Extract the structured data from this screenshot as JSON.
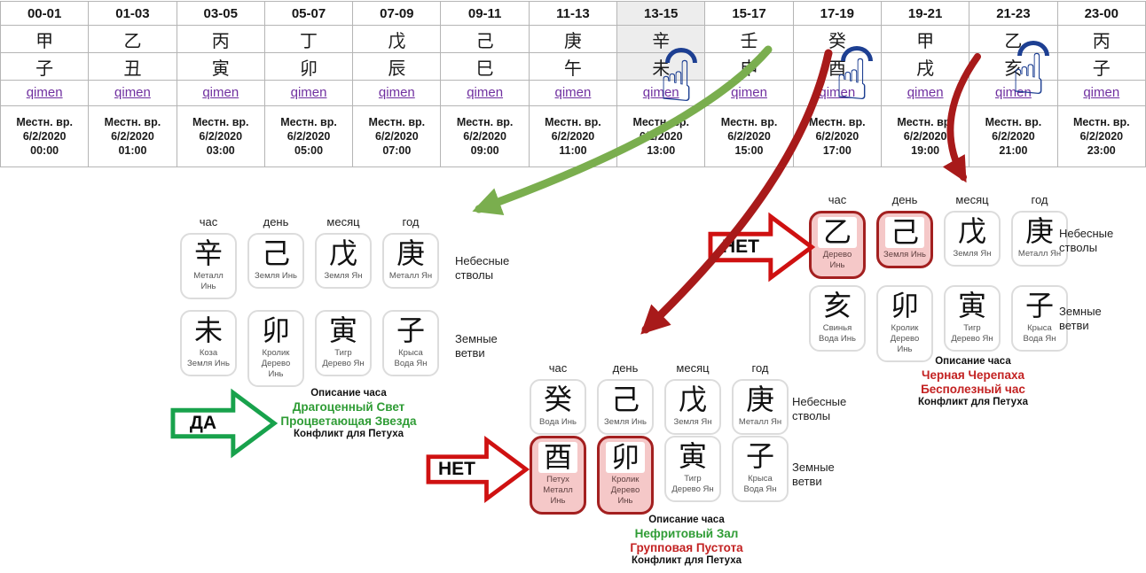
{
  "icons": {
    "tap_hand_glyph": "☝"
  },
  "colors": {
    "qimen_link": "#7030a0",
    "green_swoosh_arrow": "#7aae4e",
    "green_block_arrow": "#18a24c",
    "red_block_arrow": "#cf1111",
    "dark_red_swoosh_arrow": "#a81a1a",
    "highlight_card_bg": "#f5c8c8",
    "highlight_card_border": "#a32020",
    "green_text": "#2f9c35",
    "red_text": "#c32222",
    "hand_icon_blue": "#1d3f92",
    "selected_column_bg": "#ededed"
  },
  "hour_table": {
    "link_label": "qimen",
    "local_time_label": "Местн. вр.",
    "date": "6/2/2020",
    "columns": [
      {
        "range": "00-01",
        "stem": "甲",
        "branch": "子",
        "time": "00:00",
        "highlight": false,
        "hand": false
      },
      {
        "range": "01-03",
        "stem": "乙",
        "branch": "丑",
        "time": "01:00",
        "highlight": false,
        "hand": false
      },
      {
        "range": "03-05",
        "stem": "丙",
        "branch": "寅",
        "time": "03:00",
        "highlight": false,
        "hand": false
      },
      {
        "range": "05-07",
        "stem": "丁",
        "branch": "卯",
        "time": "05:00",
        "highlight": false,
        "hand": false
      },
      {
        "range": "07-09",
        "stem": "戊",
        "branch": "辰",
        "time": "07:00",
        "highlight": false,
        "hand": false
      },
      {
        "range": "09-11",
        "stem": "己",
        "branch": "巳",
        "time": "09:00",
        "highlight": false,
        "hand": false
      },
      {
        "range": "11-13",
        "stem": "庚",
        "branch": "午",
        "time": "11:00",
        "highlight": false,
        "hand": false
      },
      {
        "range": "13-15",
        "stem": "辛",
        "branch": "未",
        "time": "13:00",
        "highlight": true,
        "hand": true
      },
      {
        "range": "15-17",
        "stem": "壬",
        "branch": "申",
        "time": "15:00",
        "highlight": false,
        "hand": false
      },
      {
        "range": "17-19",
        "stem": "癸",
        "branch": "酉",
        "time": "17:00",
        "highlight": false,
        "hand": true
      },
      {
        "range": "19-21",
        "stem": "甲",
        "branch": "戌",
        "time": "19:00",
        "highlight": false,
        "hand": false
      },
      {
        "range": "21-23",
        "stem": "乙",
        "branch": "亥",
        "time": "21:00",
        "highlight": false,
        "hand": true
      },
      {
        "range": "23-00",
        "stem": "丙",
        "branch": "子",
        "time": "23:00",
        "highlight": false,
        "hand": false
      }
    ]
  },
  "panels": [
    {
      "verdict": "ДА",
      "verdict_color": "green",
      "headers": [
        "час",
        "день",
        "месяц",
        "год"
      ],
      "stems_label": "Небесные стволы",
      "branches_label": "Земные ветви",
      "stems": [
        {
          "char": "辛",
          "lines": [
            "Металл",
            "Инь"
          ],
          "highlight": false
        },
        {
          "char": "己",
          "lines": [
            "Земля Инь"
          ],
          "highlight": false
        },
        {
          "char": "戊",
          "lines": [
            "Земля Ян"
          ],
          "highlight": false
        },
        {
          "char": "庚",
          "lines": [
            "Металл Ян"
          ],
          "highlight": false
        }
      ],
      "branches": [
        {
          "char": "未",
          "lines": [
            "Коза",
            "Земля Инь"
          ],
          "highlight": false
        },
        {
          "char": "卯",
          "lines": [
            "Кролик",
            "Дерево",
            "Инь"
          ],
          "highlight": false
        },
        {
          "char": "寅",
          "lines": [
            "Тигр",
            "Дерево Ян"
          ],
          "highlight": false
        },
        {
          "char": "子",
          "lines": [
            "Крыса",
            "Вода Ян"
          ],
          "highlight": false
        }
      ],
      "description_title": "Описание часа",
      "description_lines": [
        {
          "text": "Драгоценный Свет",
          "color": "green"
        },
        {
          "text": "Процветающая Звезда",
          "color": "green"
        }
      ],
      "description_footer": "Конфликт для Петуха"
    },
    {
      "verdict": "НЕТ",
      "verdict_color": "red",
      "headers": [
        "час",
        "день",
        "месяц",
        "год"
      ],
      "stems_label": "Небесные стволы",
      "branches_label": "Земные ветви",
      "stems": [
        {
          "char": "癸",
          "lines": [
            "Вода Инь"
          ],
          "highlight": false
        },
        {
          "char": "己",
          "lines": [
            "Земля Инь"
          ],
          "highlight": false
        },
        {
          "char": "戊",
          "lines": [
            "Земля Ян"
          ],
          "highlight": false
        },
        {
          "char": "庚",
          "lines": [
            "Металл Ян"
          ],
          "highlight": false
        }
      ],
      "branches": [
        {
          "char": "酉",
          "lines": [
            "Петух",
            "Металл",
            "Инь"
          ],
          "highlight": true
        },
        {
          "char": "卯",
          "lines": [
            "Кролик",
            "Дерево",
            "Инь"
          ],
          "highlight": true
        },
        {
          "char": "寅",
          "lines": [
            "Тигр",
            "Дерево Ян"
          ],
          "highlight": false
        },
        {
          "char": "子",
          "lines": [
            "Крыса",
            "Вода Ян"
          ],
          "highlight": false
        }
      ],
      "description_title": "Описание часа",
      "description_lines": [
        {
          "text": "Нефритовый Зал",
          "color": "green"
        },
        {
          "text": "Групповая Пустота",
          "color": "red"
        }
      ],
      "description_footer": "Конфликт для Петуха"
    },
    {
      "verdict": "НЕТ",
      "verdict_color": "red",
      "headers": [
        "час",
        "день",
        "месяц",
        "год"
      ],
      "stems_label": "Небесные стволы",
      "branches_label": "Земные ветви",
      "stems": [
        {
          "char": "乙",
          "lines": [
            "Дерево",
            "Инь"
          ],
          "highlight": true
        },
        {
          "char": "己",
          "lines": [
            "Земля Инь"
          ],
          "highlight": true
        },
        {
          "char": "戊",
          "lines": [
            "Земля Ян"
          ],
          "highlight": false
        },
        {
          "char": "庚",
          "lines": [
            "Металл Ян"
          ],
          "highlight": false
        }
      ],
      "branches": [
        {
          "char": "亥",
          "lines": [
            "Свинья",
            "Вода Инь"
          ],
          "highlight": false
        },
        {
          "char": "卯",
          "lines": [
            "Кролик",
            "Дерево",
            "Инь"
          ],
          "highlight": false
        },
        {
          "char": "寅",
          "lines": [
            "Тигр",
            "Дерево Ян"
          ],
          "highlight": false
        },
        {
          "char": "子",
          "lines": [
            "Крыса",
            "Вода Ян"
          ],
          "highlight": false
        }
      ],
      "description_title": "Описание часа",
      "description_lines": [
        {
          "text": "Черная Черепаха",
          "color": "red"
        },
        {
          "text": "Бесполезный час",
          "color": "red"
        }
      ],
      "description_footer": "Конфликт для Петуха"
    }
  ]
}
